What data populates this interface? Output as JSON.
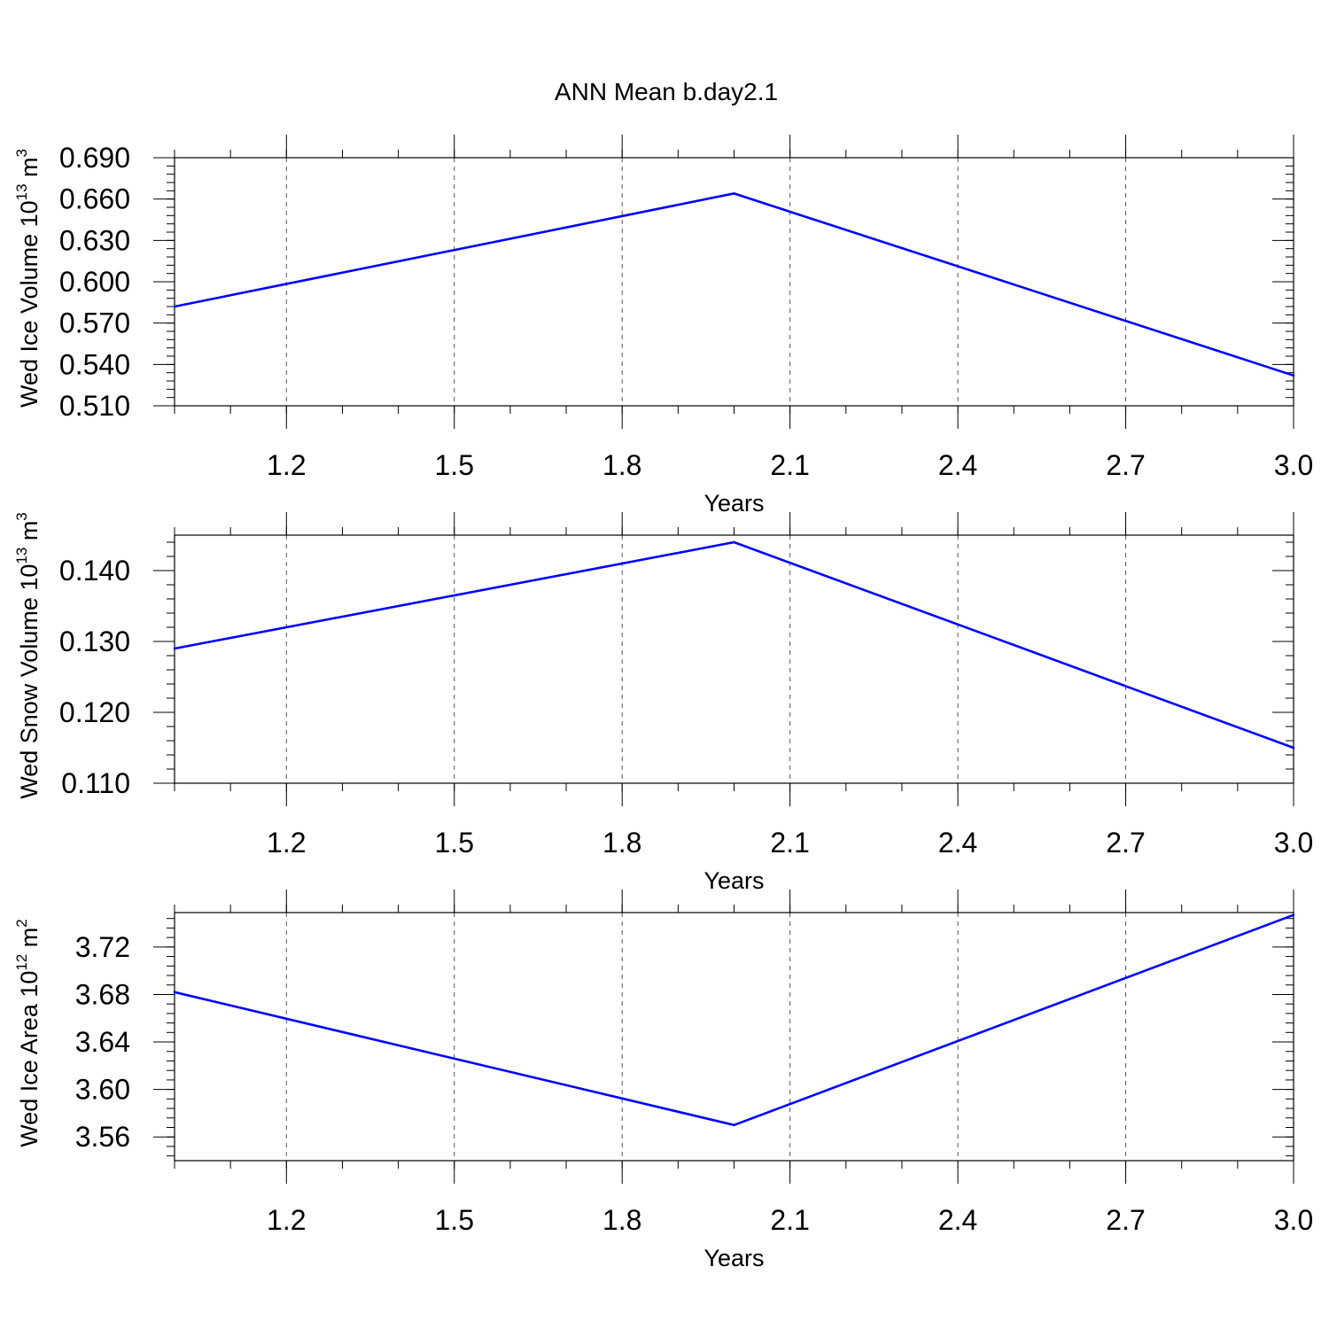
{
  "title": "ANN Mean b.day2.1",
  "colors": {
    "series": "#0000ff",
    "axis": "#000000",
    "grid": "#555555",
    "background": "#ffffff"
  },
  "chart_data": [
    {
      "type": "line",
      "xlabel": "Years",
      "ylabel": {
        "text": "Wed Ice Volume 10",
        "exp": "13",
        "unit": " m",
        "unit_exp": "3"
      },
      "xlim": [
        1.0,
        3.0
      ],
      "ylim": [
        0.51,
        0.69
      ],
      "xticks": [
        1.2,
        1.5,
        1.8,
        2.1,
        2.4,
        2.7,
        3.0
      ],
      "xtick_labels": [
        "1.2",
        "1.5",
        "1.8",
        "2.1",
        "2.4",
        "2.7",
        "3.0"
      ],
      "yticks": [
        0.51,
        0.54,
        0.57,
        0.6,
        0.63,
        0.66,
        0.69
      ],
      "ytick_labels": [
        "0.510",
        "0.540",
        "0.570",
        "0.600",
        "0.630",
        "0.660",
        "0.690"
      ],
      "grid": "vertical dashed",
      "x": [
        1.0,
        2.0,
        3.0
      ],
      "y": [
        0.582,
        0.664,
        0.532
      ]
    },
    {
      "type": "line",
      "xlabel": "Years",
      "ylabel": {
        "text": "Wed Snow Volume 10",
        "exp": "13",
        "unit": " m",
        "unit_exp": "3"
      },
      "xlim": [
        1.0,
        3.0
      ],
      "ylim": [
        0.11,
        0.145
      ],
      "xticks": [
        1.2,
        1.5,
        1.8,
        2.1,
        2.4,
        2.7,
        3.0
      ],
      "xtick_labels": [
        "1.2",
        "1.5",
        "1.8",
        "2.1",
        "2.4",
        "2.7",
        "3.0"
      ],
      "yticks": [
        0.11,
        0.12,
        0.13,
        0.14
      ],
      "ytick_labels": [
        "0.110",
        "0.120",
        "0.130",
        "0.140"
      ],
      "grid": "vertical dashed",
      "x": [
        1.0,
        2.0,
        3.0
      ],
      "y": [
        0.129,
        0.144,
        0.115
      ]
    },
    {
      "type": "line",
      "xlabel": "Years",
      "ylabel": {
        "text": "Wed Ice Area 10",
        "exp": "12",
        "unit": " m",
        "unit_exp": "2"
      },
      "xlim": [
        1.0,
        3.0
      ],
      "ylim": [
        3.54,
        3.749
      ],
      "xticks": [
        1.2,
        1.5,
        1.8,
        2.1,
        2.4,
        2.7,
        3.0
      ],
      "xtick_labels": [
        "1.2",
        "1.5",
        "1.8",
        "2.1",
        "2.4",
        "2.7",
        "3.0"
      ],
      "yticks": [
        3.56,
        3.6,
        3.64,
        3.68,
        3.72
      ],
      "ytick_labels": [
        "3.56",
        "3.60",
        "3.64",
        "3.68",
        "3.72"
      ],
      "grid": "vertical dashed",
      "x": [
        1.0,
        2.0,
        3.0
      ],
      "y": [
        3.682,
        3.57,
        3.747
      ]
    }
  ]
}
